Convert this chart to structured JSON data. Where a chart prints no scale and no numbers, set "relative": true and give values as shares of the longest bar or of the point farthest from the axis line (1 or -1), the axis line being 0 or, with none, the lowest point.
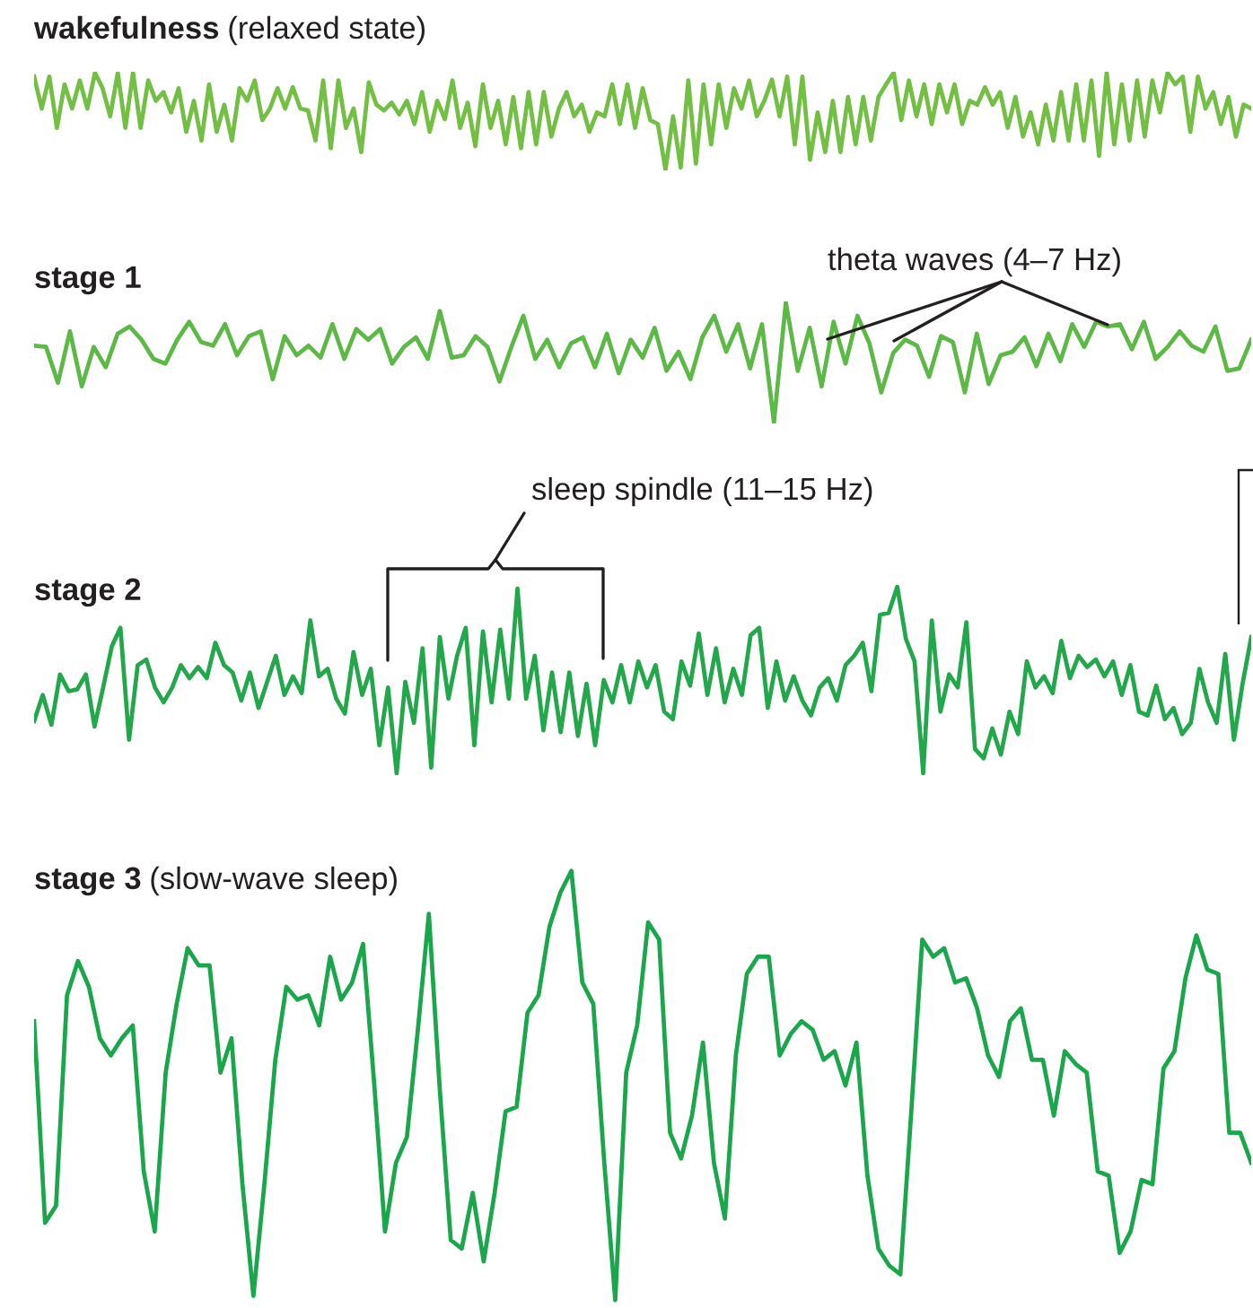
{
  "chart_data": [
    {
      "type": "line",
      "title": "wakefulness",
      "subtitle": "(relaxed state)",
      "relative": true,
      "color": "#72bf44",
      "categories": [
        null,
        null,
        null,
        null,
        null,
        null,
        null,
        null,
        null,
        null,
        null,
        null,
        null,
        null,
        null,
        null,
        null,
        null,
        null,
        null,
        null,
        null,
        null,
        null,
        null,
        null,
        null,
        null,
        null,
        null,
        null,
        null,
        null,
        null,
        null,
        null,
        null,
        null,
        null,
        null,
        null,
        null,
        null,
        null,
        null,
        null,
        null,
        null,
        null,
        null,
        null,
        null,
        null,
        null,
        null,
        null,
        null,
        null,
        null,
        null,
        null,
        null,
        null,
        null,
        null,
        null,
        null,
        null,
        null,
        null,
        null,
        null,
        null,
        null,
        null,
        null,
        null,
        null,
        null,
        null,
        null,
        null,
        null,
        null,
        null,
        null,
        null,
        null,
        null,
        null,
        null,
        null,
        null,
        null,
        null,
        null,
        null,
        null,
        null,
        null,
        null,
        null,
        null,
        null,
        null,
        null,
        null,
        null,
        null,
        null,
        null,
        null,
        null,
        null,
        null,
        null,
        null,
        null,
        null,
        null,
        null,
        null,
        null,
        null,
        null,
        null,
        null,
        null,
        null,
        null,
        null,
        null,
        null,
        null,
        null,
        null,
        null,
        null,
        null,
        null,
        null,
        null,
        null,
        null,
        null,
        null,
        null,
        null,
        null,
        null,
        null,
        null,
        null,
        null,
        null,
        null,
        null,
        null,
        null,
        null,
        null
      ],
      "values": [
        0.96,
        0.63,
        0.96,
        0.43,
        0.88,
        0.63,
        0.92,
        0.63,
        1,
        0.84,
        0.55,
        1,
        0.43,
        1,
        0.43,
        0.92,
        0.71,
        0.8,
        0.59,
        0.84,
        0.39,
        0.71,
        0.3,
        0.88,
        0.39,
        0.67,
        0.3,
        0.84,
        0.71,
        0.92,
        0.51,
        0.63,
        0.84,
        0.63,
        0.85,
        0.63,
        0.61,
        0.3,
        0.92,
        0.22,
        0.92,
        0.43,
        0.63,
        0.18,
        0.9,
        0.67,
        0.61,
        0.69,
        0.57,
        0.71,
        0.47,
        0.8,
        0.39,
        0.71,
        0.52,
        0.92,
        0.43,
        0.69,
        0.24,
        0.88,
        0.43,
        0.71,
        0.26,
        0.75,
        0.22,
        0.8,
        0.26,
        0.8,
        0.34,
        0.63,
        0.8,
        0.55,
        0.67,
        0.39,
        0.59,
        0.55,
        0.88,
        0.47,
        0.88,
        0.43,
        0.84,
        0.51,
        0.47,
        0,
        0.55,
        0.02,
        0.92,
        0.06,
        0.88,
        0.26,
        0.88,
        0.43,
        0.84,
        0.63,
        0.92,
        0.55,
        0.71,
        0.93,
        0.55,
        0.96,
        0.26,
        0.96,
        0.1,
        0.59,
        0.18,
        0.71,
        0.18,
        0.75,
        0.26,
        0.75,
        0.3,
        0.75,
        0.88,
        1,
        0.51,
        0.92,
        0.55,
        0.88,
        0.47,
        0.88,
        0.59,
        0.88,
        0.47,
        0.71,
        0.67,
        0.85,
        0.67,
        0.8,
        0.43,
        0.75,
        0.34,
        0.59,
        0.26,
        0.67,
        0.3,
        0.8,
        0.3,
        0.88,
        0.3,
        0.92,
        0.14,
        1,
        0.26,
        0.88,
        0.3,
        0.92,
        0.34,
        0.92,
        0.59,
        1,
        0.88,
        0.96,
        0.39,
        0.96,
        0.63,
        0.8,
        0.47,
        0.75,
        0.34,
        0.67,
        0.63
      ]
    },
    {
      "type": "line",
      "title": "stage 1",
      "relative": true,
      "color": "#5cb946",
      "annotations": [
        "theta waves (4–7 Hz)"
      ],
      "categories": [
        null,
        null,
        null,
        null,
        null,
        null,
        null,
        null,
        null,
        null,
        null,
        null,
        null,
        null,
        null,
        null,
        null,
        null,
        null,
        null,
        null,
        null,
        null,
        null,
        null,
        null,
        null,
        null,
        null,
        null,
        null,
        null,
        null,
        null,
        null,
        null,
        null,
        null,
        null,
        null,
        null,
        null,
        null,
        null,
        null,
        null,
        null,
        null,
        null,
        null,
        null,
        null,
        null,
        null,
        null,
        null,
        null,
        null,
        null,
        null,
        null,
        null,
        null,
        null,
        null,
        null,
        null,
        null,
        null,
        null,
        null,
        null,
        null,
        null,
        null,
        null,
        null,
        null,
        null,
        null,
        null,
        null,
        null,
        null,
        null,
        null,
        null,
        null,
        null,
        null,
        null,
        null,
        null,
        null,
        null,
        null,
        null,
        null,
        null,
        null,
        null,
        null,
        null
      ],
      "values": [
        0.64,
        0.63,
        0.33,
        0.76,
        0.3,
        0.63,
        0.46,
        0.74,
        0.8,
        0.69,
        0.53,
        0.49,
        0.69,
        0.84,
        0.67,
        0.64,
        0.82,
        0.56,
        0.72,
        0.76,
        0.36,
        0.72,
        0.56,
        0.64,
        0.54,
        0.82,
        0.53,
        0.78,
        0.69,
        0.78,
        0.49,
        0.63,
        0.71,
        0.53,
        0.93,
        0.54,
        0.56,
        0.72,
        0.63,
        0.34,
        0.63,
        0.89,
        0.53,
        0.69,
        0.46,
        0.66,
        0.71,
        0.46,
        0.74,
        0.41,
        0.69,
        0.54,
        0.79,
        0.43,
        0.59,
        0.36,
        0.71,
        0.89,
        0.59,
        0.82,
        0.45,
        0.82,
        0,
        1,
        0.43,
        0.79,
        0.3,
        0.84,
        0.49,
        0.89,
        0.66,
        0.25,
        0.58,
        0.69,
        0.64,
        0.38,
        0.72,
        0.67,
        0.25,
        0.74,
        0.32,
        0.56,
        0.59,
        0.71,
        0.47,
        0.74,
        0.51,
        0.82,
        0.63,
        0.84,
        0.8,
        0.82,
        0.61,
        0.84,
        0.53,
        0.63,
        0.76,
        0.64,
        0.59,
        0.8,
        0.43,
        0.45,
        0.69
      ]
    },
    {
      "type": "line",
      "title": "stage 2",
      "relative": true,
      "color": "#22a84a",
      "annotations": [
        "sleep spindle (11–15 Hz)"
      ],
      "categories": [
        null,
        null,
        null,
        null,
        null,
        null,
        null,
        null,
        null,
        null,
        null,
        null,
        null,
        null,
        null,
        null,
        null,
        null,
        null,
        null,
        null,
        null,
        null,
        null,
        null,
        null,
        null,
        null,
        null,
        null,
        null,
        null,
        null,
        null,
        null,
        null,
        null,
        null,
        null,
        null,
        null,
        null,
        null,
        null,
        null,
        null,
        null,
        null,
        null,
        null,
        null,
        null,
        null,
        null,
        null,
        null,
        null,
        null,
        null,
        null,
        null,
        null,
        null,
        null,
        null,
        null,
        null,
        null,
        null,
        null,
        null,
        null,
        null,
        null,
        null,
        null,
        null,
        null,
        null,
        null,
        null,
        null,
        null,
        null,
        null,
        null,
        null,
        null,
        null,
        null,
        null,
        null,
        null,
        null,
        null,
        null,
        null,
        null,
        null,
        null,
        null,
        null,
        null,
        null,
        null,
        null,
        null,
        null,
        null,
        null,
        null,
        null,
        null,
        null,
        null,
        null,
        null,
        null,
        null,
        null,
        null,
        null,
        null,
        null,
        null,
        null,
        null,
        null,
        null,
        null,
        null,
        null,
        null,
        null,
        null,
        null,
        null,
        null,
        null,
        null,
        null,
        null
      ],
      "values": [
        0.28,
        0.42,
        0.26,
        0.53,
        0.44,
        0.45,
        0.53,
        0.25,
        0.46,
        0.68,
        0.78,
        0.18,
        0.58,
        0.61,
        0.46,
        0.38,
        0.46,
        0.58,
        0.51,
        0.57,
        0.51,
        0.7,
        0.58,
        0.54,
        0.39,
        0.54,
        0.35,
        0.49,
        0.63,
        0.42,
        0.52,
        0.43,
        0.82,
        0.52,
        0.56,
        0.4,
        0.32,
        0.65,
        0.42,
        0.56,
        0.15,
        0.46,
        0,
        0.49,
        0.27,
        0.67,
        0.03,
        0.73,
        0.4,
        0.63,
        0.78,
        0.15,
        0.76,
        0.38,
        0.77,
        0.4,
        0.99,
        0.4,
        0.63,
        0.23,
        0.54,
        0.22,
        0.54,
        0.2,
        0.48,
        0.15,
        0.5,
        0.38,
        0.58,
        0.38,
        0.6,
        0.46,
        0.58,
        0.33,
        0.29,
        0.6,
        0.47,
        0.75,
        0.42,
        0.67,
        0.38,
        0.56,
        0.42,
        0.74,
        0.78,
        0.35,
        0.6,
        0.39,
        0.52,
        0.39,
        0.31,
        0.46,
        0.51,
        0.39,
        0.58,
        0.63,
        0.7,
        0.44,
        0.85,
        0.86,
        1,
        0.72,
        0.6,
        0,
        0.82,
        0.33,
        0.53,
        0.46,
        0.81,
        0.13,
        0.08,
        0.24,
        0.1,
        0.33,
        0.21,
        0.6,
        0.46,
        0.52,
        0.43,
        0.71,
        0.51,
        0.63,
        0.57,
        0.61,
        0.52,
        0.6,
        0.42,
        0.58,
        0.33,
        0.31,
        0.47,
        0.29,
        0.35,
        0.21,
        0.27,
        0.56,
        0.38,
        0.27,
        0.64,
        0.18,
        0.48,
        0.73
      ]
    },
    {
      "type": "line",
      "title": "stage 3",
      "subtitle": "(slow-wave sleep)",
      "relative": true,
      "color": "#1aa64a",
      "categories": [
        null,
        null,
        null,
        null,
        null,
        null,
        null,
        null,
        null,
        null,
        null,
        null,
        null,
        null,
        null,
        null,
        null,
        null,
        null,
        null,
        null,
        null,
        null,
        null,
        null,
        null,
        null,
        null,
        null,
        null,
        null,
        null,
        null,
        null,
        null,
        null,
        null,
        null,
        null,
        null,
        null,
        null,
        null,
        null,
        null,
        null,
        null,
        null,
        null,
        null,
        null,
        null,
        null,
        null,
        null,
        null,
        null,
        null,
        null,
        null,
        null,
        null,
        null,
        null,
        null,
        null,
        null,
        null,
        null,
        null,
        null,
        null,
        null,
        null,
        null,
        null,
        null,
        null,
        null,
        null,
        null,
        null,
        null,
        null,
        null,
        null,
        null,
        null,
        null,
        null,
        null,
        null,
        null,
        null,
        null,
        null,
        null,
        null,
        null,
        null,
        null,
        null,
        null,
        null,
        null,
        null,
        null,
        null,
        null,
        null,
        null,
        null
      ],
      "values": [
        0.65,
        0.18,
        0.22,
        0.71,
        0.79,
        0.73,
        0.61,
        0.57,
        0.61,
        0.64,
        0.3,
        0.16,
        0.53,
        0.69,
        0.82,
        0.78,
        0.78,
        0.53,
        0.61,
        0.27,
        0.01,
        0.27,
        0.56,
        0.73,
        0.7,
        0.71,
        0.64,
        0.8,
        0.7,
        0.74,
        0.83,
        0.51,
        0.16,
        0.32,
        0.38,
        0.63,
        0.9,
        0.49,
        0.14,
        0.12,
        0.25,
        0.09,
        0.25,
        0.44,
        0.45,
        0.67,
        0.71,
        0.87,
        0.95,
        1,
        0.74,
        0.69,
        0.32,
        0,
        0.53,
        0.64,
        0.88,
        0.84,
        0.39,
        0.33,
        0.43,
        0.6,
        0.32,
        0.19,
        0.57,
        0.76,
        0.8,
        0.8,
        0.57,
        0.62,
        0.65,
        0.63,
        0.56,
        0.58,
        0.5,
        0.6,
        0.29,
        0.12,
        0.08,
        0.06,
        0.44,
        0.84,
        0.8,
        0.82,
        0.74,
        0.75,
        0.68,
        0.57,
        0.52,
        0.65,
        0.68,
        0.56,
        0.56,
        0.43,
        0.58,
        0.55,
        0.53,
        0.3,
        0.29,
        0.11,
        0.16,
        0.28,
        0.27,
        0.54,
        0.58,
        0.75,
        0.85,
        0.77,
        0.76,
        0.39,
        0.39,
        0.32
      ]
    }
  ]
}
